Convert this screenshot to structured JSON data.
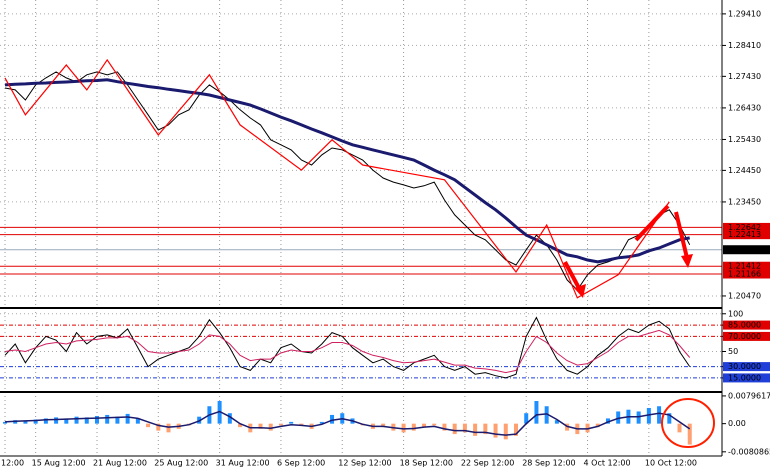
{
  "chart_data": [
    {
      "type": "line",
      "categories": [
        "12:00",
        null,
        null,
        "15 Aug 12:00",
        null,
        null,
        null,
        null,
        null,
        "21 Aug 12:00",
        null,
        null,
        null,
        null,
        null,
        "25 Aug 12:00",
        null,
        null,
        null,
        null,
        null,
        "31 Aug 12:00",
        null,
        null,
        null,
        null,
        null,
        "6 Sep 12:00",
        null,
        null,
        null,
        null,
        null,
        "12 Sep 12:00",
        null,
        null,
        null,
        null,
        null,
        "18 Sep 12:00",
        null,
        null,
        null,
        null,
        null,
        "22 Sep 12:00",
        null,
        null,
        null,
        null,
        null,
        "28 Sep 12:00",
        null,
        null,
        null,
        null,
        null,
        "4 Oct 12:00",
        null,
        null,
        null,
        null,
        null,
        "10 Oct 12:00",
        null,
        null,
        null,
        null
      ],
      "ylim": [
        1.2012,
        1.2985
      ],
      "yticks": [
        {
          "value": 1.2941,
          "label": "1.29410"
        },
        {
          "value": 1.2841,
          "label": "1.28410"
        },
        {
          "value": 1.2743,
          "label": "1.27430"
        },
        {
          "value": 1.2643,
          "label": "1.26430"
        },
        {
          "value": 1.2543,
          "label": "1.25430"
        },
        {
          "value": 1.2445,
          "label": "1.24450"
        },
        {
          "value": 1.2345,
          "label": "1.23450"
        },
        {
          "value": 1.2047,
          "label": "1.20470"
        }
      ],
      "grid": true,
      "series": [
        {
          "color": "#000000",
          "line_width": 1,
          "values": [
            1.2706,
            1.27,
            1.2668,
            1.2716,
            1.2738,
            1.2757,
            1.2738,
            1.2725,
            1.2748,
            1.2757,
            1.2748,
            1.2757,
            1.2716,
            1.2668,
            1.2621,
            1.2573,
            1.2589,
            1.2621,
            1.2637,
            1.2684,
            1.2716,
            1.2694,
            1.2668,
            1.2637,
            1.2611,
            1.2589,
            1.2542,
            1.2526,
            1.251,
            1.2478,
            1.2462,
            1.2494,
            1.2516,
            1.251,
            1.2494,
            1.2478,
            1.2446,
            1.2421,
            1.2408,
            1.2399,
            1.2389,
            1.2396,
            1.2408,
            1.2351,
            1.2304,
            1.2272,
            1.224,
            1.2225,
            1.2193,
            1.2161,
            1.2145,
            1.2193,
            1.224,
            1.2209,
            1.2161,
            1.2098,
            1.2066,
            1.2114,
            1.2145,
            1.2155,
            1.2168,
            1.2225,
            1.224,
            1.2272,
            1.2304,
            1.232,
            1.2272,
            1.2209
          ]
        },
        {
          "color": "#1a1a6e",
          "line_width": 3,
          "values": [
            1.2716,
            1.2718,
            1.2719,
            1.2721,
            1.2722,
            1.2724,
            1.2725,
            1.2727,
            1.2729,
            1.273,
            1.2732,
            1.2726,
            1.2721,
            1.2716,
            1.2711,
            1.2707,
            1.2702,
            1.2698,
            1.2693,
            1.2689,
            1.2684,
            1.2676,
            1.2668,
            1.266,
            1.2652,
            1.264,
            1.2627,
            1.2614,
            1.2602,
            1.2589,
            1.2576,
            1.2564,
            1.2551,
            1.2538,
            1.2526,
            1.2518,
            1.251,
            1.2502,
            1.2494,
            1.2486,
            1.2478,
            1.2462,
            1.2446,
            1.2431,
            1.2415,
            1.2391,
            1.2367,
            1.2343,
            1.232,
            1.2294,
            1.2266,
            1.224,
            1.2225,
            1.2209,
            1.2193,
            1.2177,
            1.2171,
            1.2161,
            1.2155,
            1.2161,
            1.2168,
            1.2171,
            1.2177,
            1.219,
            1.2199,
            1.2212,
            1.2225,
            1.2231
          ]
        }
      ],
      "zigzag": {
        "color": "#ff0000",
        "x": [
          0,
          2,
          6,
          8,
          10,
          15,
          20,
          23,
          29,
          32,
          35,
          43,
          50,
          53,
          56,
          60,
          65
        ],
        "values": [
          1.2738,
          1.2621,
          1.2779,
          1.27,
          1.2795,
          1.2557,
          1.2748,
          1.2589,
          1.2446,
          1.2542,
          1.2462,
          1.2415,
          1.2123,
          1.2272,
          1.2041,
          1.2114,
          1.2345
        ]
      },
      "hlines": [
        {
          "value": 1.22642,
          "color": "#e00000"
        },
        {
          "value": 1.22413,
          "color": "#e00000"
        },
        {
          "value": 1.21935,
          "color": "#000000"
        },
        {
          "value": 1.21412,
          "color": "#e00000"
        },
        {
          "value": 1.21166,
          "color": "#e00000"
        }
      ]
    },
    {
      "type": "line",
      "ylim": [
        -1,
        105
      ],
      "yticks": [
        100,
        {
          "value": 85,
          "label": "85.0000",
          "color": "#e00000"
        },
        {
          "value": 70,
          "label": "70.0000",
          "color": "#e00000"
        },
        50,
        {
          "value": 30,
          "label": "30.0000",
          "color": "#1f3fd8"
        },
        {
          "value": 15,
          "label": "15.0000",
          "color": "#1f3fd8"
        }
      ],
      "grid": true,
      "series": [
        {
          "color": "#000000",
          "line_width": 1,
          "values": [
            45,
            60,
            35,
            55,
            70,
            65,
            50,
            75,
            60,
            70,
            72,
            68,
            80,
            55,
            30,
            40,
            45,
            50,
            55,
            70,
            92,
            75,
            55,
            30,
            25,
            40,
            35,
            55,
            60,
            50,
            48,
            60,
            75,
            70,
            55,
            45,
            35,
            40,
            30,
            25,
            35,
            40,
            45,
            30,
            25,
            30,
            20,
            22,
            18,
            15,
            20,
            70,
            95,
            65,
            40,
            25,
            20,
            30,
            45,
            55,
            70,
            80,
            75,
            85,
            90,
            80,
            50,
            30
          ]
        },
        {
          "color": "#d02060",
          "line_width": 1,
          "values": [
            50,
            52,
            50,
            55,
            60,
            62,
            60,
            64,
            65,
            66,
            68,
            68,
            70,
            62,
            50,
            48,
            48,
            50,
            52,
            60,
            72,
            70,
            60,
            45,
            38,
            40,
            40,
            48,
            52,
            50,
            50,
            55,
            62,
            62,
            58,
            50,
            45,
            42,
            38,
            35,
            36,
            38,
            40,
            36,
            32,
            32,
            28,
            27,
            25,
            22,
            25,
            50,
            70,
            62,
            48,
            38,
            32,
            34,
            42,
            50,
            62,
            70,
            70,
            74,
            78,
            72,
            58,
            42
          ]
        }
      ]
    },
    {
      "type": "bar",
      "ylim": [
        -0.009,
        0.0088
      ],
      "yticks": [
        0.0079617,
        {
          "value": 0,
          "label": "0.00"
        },
        -0.0080865
      ],
      "grid": false,
      "colors": {
        "positive": "#1e8fff",
        "negative": "#ffa070"
      },
      "values": [
        0.0005,
        0.001,
        0.0008,
        0.0012,
        0.0015,
        0.0018,
        0.0015,
        0.002,
        0.0018,
        0.0022,
        0.0025,
        0.002,
        0.0028,
        0.0015,
        -0.001,
        -0.002,
        -0.0025,
        -0.0015,
        -0.0005,
        0.002,
        0.005,
        0.0065,
        0.003,
        -0.001,
        -0.0025,
        -0.0015,
        -0.002,
        -0.0005,
        0.0005,
        -0.0005,
        -0.0015,
        0.0005,
        0.0025,
        0.003,
        0.0015,
        -0.0005,
        -0.0015,
        -0.001,
        -0.002,
        -0.0025,
        -0.002,
        -0.001,
        -0.0005,
        -0.002,
        -0.003,
        -0.0025,
        -0.0035,
        -0.003,
        -0.004,
        -0.0045,
        -0.0035,
        0.003,
        0.0065,
        0.005,
        0.001,
        -0.002,
        -0.003,
        -0.0025,
        -0.001,
        0.0015,
        0.0035,
        0.004,
        0.0035,
        0.0045,
        0.005,
        0.003,
        -0.0025,
        -0.006
      ],
      "line": {
        "color": "#1a1a6e",
        "values": [
          0.0005,
          0.0007,
          0.0008,
          0.0009,
          0.0011,
          0.0012,
          0.0013,
          0.0014,
          0.0015,
          0.0016,
          0.0017,
          0.0018,
          0.0019,
          0.0015,
          0.0005,
          -0.0005,
          -0.001,
          -0.0008,
          -0.0003,
          0.0008,
          0.0025,
          0.0035,
          0.002,
          0.0,
          -0.0012,
          -0.0012,
          -0.0013,
          -0.0008,
          -0.0003,
          -0.0005,
          -0.0008,
          -0.0002,
          0.001,
          0.0014,
          0.0008,
          -0.0002,
          -0.0008,
          -0.0008,
          -0.0012,
          -0.0015,
          -0.0014,
          -0.001,
          -0.0008,
          -0.0015,
          -0.002,
          -0.002,
          -0.0025,
          -0.0025,
          -0.003,
          -0.0033,
          -0.003,
          0.0,
          0.0025,
          0.0028,
          0.0012,
          -0.0008,
          -0.0015,
          -0.0015,
          -0.0008,
          0.0005,
          0.0015,
          0.002,
          0.002,
          0.0025,
          0.003,
          0.0025,
          0.0005,
          -0.0015
        ]
      }
    }
  ]
}
